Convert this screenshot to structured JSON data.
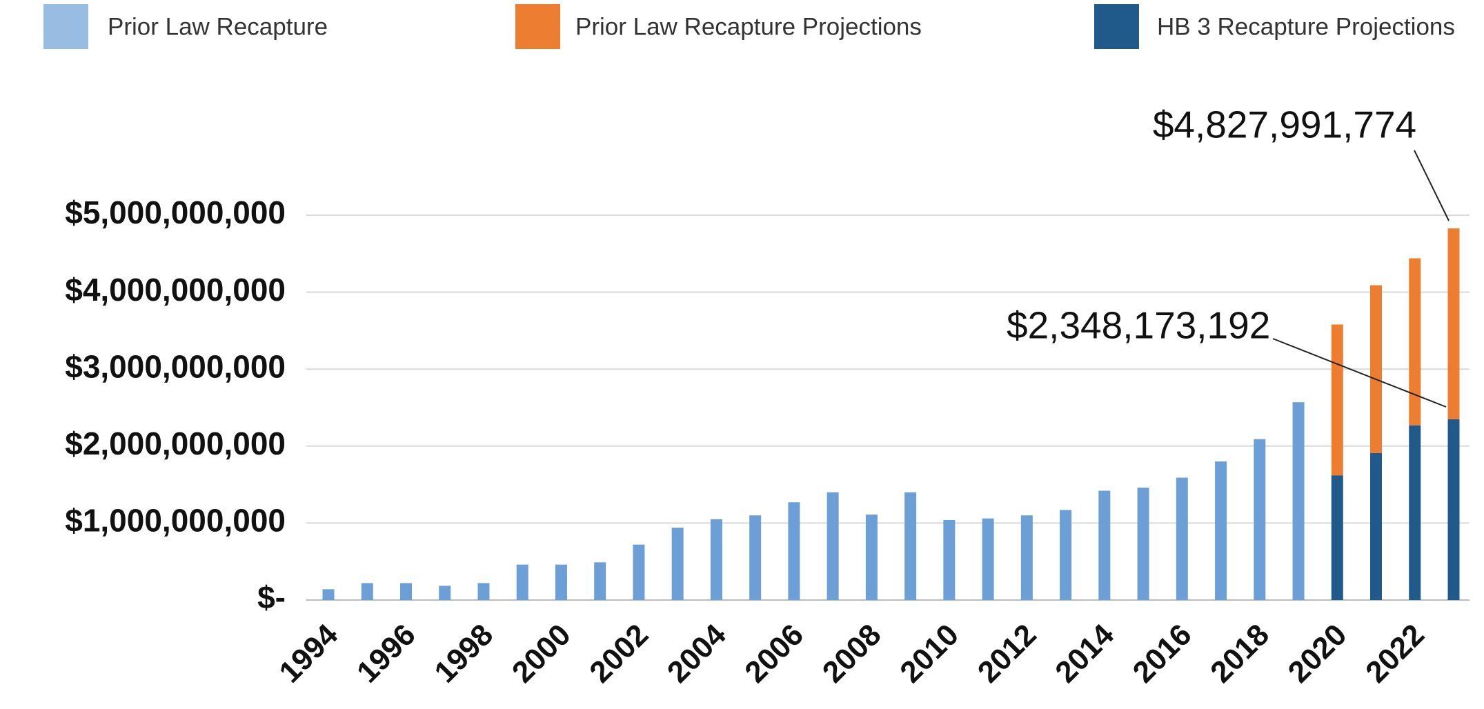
{
  "chart_data": {
    "type": "stacked_bar",
    "categories": [
      "1994",
      null,
      "1996",
      null,
      "1998",
      null,
      "2000",
      null,
      "2002",
      null,
      "2004",
      null,
      "2006",
      null,
      "2008",
      null,
      "2010",
      null,
      "2012",
      null,
      "2014",
      null,
      "2016",
      null,
      "2018",
      null,
      "2020",
      null,
      "2022",
      null
    ],
    "series": [
      {
        "name": "Prior Law Recapture",
        "color": "#6c9fd5",
        "values": [
          140000000,
          220000000,
          220000000,
          185000000,
          220000000,
          460000000,
          460000000,
          490000000,
          720000000,
          940000000,
          1050000000,
          1100000000,
          1270000000,
          1400000000,
          1110000000,
          1400000000,
          1040000000,
          1060000000,
          1100000000,
          1170000000,
          1420000000,
          1460000000,
          1590000000,
          1800000000,
          2090000000,
          2570000000,
          null,
          null,
          null,
          null
        ]
      },
      {
        "name": "Prior Law Recapture Projections",
        "color": "#ed7d31",
        "values": [
          null,
          null,
          null,
          null,
          null,
          null,
          null,
          null,
          null,
          null,
          null,
          null,
          null,
          null,
          null,
          null,
          null,
          null,
          null,
          null,
          null,
          null,
          null,
          null,
          null,
          null,
          1960000000,
          2180000000,
          2170000000,
          2479818582
        ]
      },
      {
        "name": "HB 3 Recapture Projections",
        "color": "#1f5a8a",
        "values": [
          null,
          null,
          null,
          null,
          null,
          null,
          null,
          null,
          null,
          null,
          null,
          null,
          null,
          null,
          null,
          null,
          null,
          null,
          null,
          null,
          null,
          null,
          null,
          null,
          null,
          null,
          1620000000,
          1910000000,
          2270000000,
          2348173192
        ]
      }
    ],
    "annotations": [
      "$4,827,991,774",
      "$2,348,173,192"
    ],
    "ylim": [
      0,
      5000000000
    ],
    "yticks": [
      {
        "value": 0,
        "label": "$-"
      },
      {
        "value": 1000000000,
        "label": "$1,000,000,000"
      },
      {
        "value": 2000000000,
        "label": "$2,000,000,000"
      },
      {
        "value": 3000000000,
        "label": "$3,000,000,000"
      },
      {
        "value": 4000000000,
        "label": "$4,000,000,000"
      },
      {
        "value": 5000000000,
        "label": "$5,000,000,000"
      }
    ],
    "grid": true,
    "legend": "top"
  }
}
